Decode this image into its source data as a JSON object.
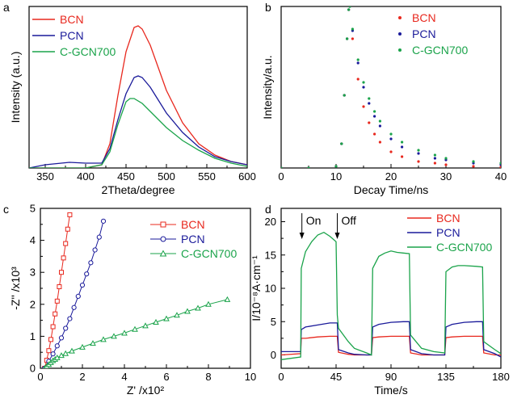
{
  "colors": {
    "BCN": "#e8281e",
    "PCN": "#1a1a9a",
    "C-GCN700": "#1aa34a",
    "axis": "#000000"
  },
  "chart_data": [
    {
      "panel": "a",
      "type": "line",
      "xlabel": "2Theta/degree",
      "ylabel": "Intensity (a.u.)",
      "xlim": [
        330,
        600
      ],
      "ylim": [
        0,
        1.0
      ],
      "xticks": [
        350,
        400,
        450,
        500,
        550,
        600
      ],
      "yticks": [],
      "legend": "top-left",
      "series": [
        {
          "name": "BCN",
          "color": "#e8281e",
          "x": [
            330,
            350,
            380,
            400,
            420,
            430,
            440,
            450,
            460,
            465,
            470,
            480,
            490,
            500,
            520,
            540,
            560,
            580,
            600
          ],
          "y": [
            0.0,
            0.0,
            0.0,
            0.0,
            0.02,
            0.15,
            0.45,
            0.72,
            0.87,
            0.88,
            0.86,
            0.76,
            0.62,
            0.48,
            0.28,
            0.15,
            0.08,
            0.04,
            0.02
          ]
        },
        {
          "name": "PCN",
          "color": "#1a1a9a",
          "x": [
            330,
            350,
            380,
            400,
            420,
            430,
            440,
            450,
            460,
            465,
            470,
            480,
            490,
            500,
            520,
            540,
            560,
            580,
            600
          ],
          "y": [
            0.0,
            0.02,
            0.035,
            0.03,
            0.03,
            0.12,
            0.3,
            0.46,
            0.56,
            0.57,
            0.56,
            0.5,
            0.42,
            0.34,
            0.22,
            0.13,
            0.07,
            0.04,
            0.02
          ]
        },
        {
          "name": "C-GCN700",
          "color": "#1aa34a",
          "x": [
            330,
            350,
            380,
            400,
            420,
            430,
            440,
            450,
            455,
            460,
            470,
            480,
            490,
            500,
            520,
            540,
            560,
            580,
            600
          ],
          "y": [
            0.0,
            0.0,
            0.0,
            0.0,
            0.02,
            0.1,
            0.27,
            0.41,
            0.43,
            0.43,
            0.4,
            0.35,
            0.3,
            0.25,
            0.17,
            0.11,
            0.06,
            0.03,
            0.01
          ]
        }
      ]
    },
    {
      "panel": "b",
      "type": "scatter",
      "xlabel": "Decay Time/ns",
      "ylabel": "Intensity/a.u.",
      "xlim": [
        0,
        40
      ],
      "ylim": [
        0,
        1.0
      ],
      "xticks": [
        0,
        10,
        20,
        30,
        40
      ],
      "yticks": [],
      "legend": "top-right",
      "series": [
        {
          "name": "BCN",
          "color": "#e8281e",
          "x": [
            0,
            5,
            10,
            11,
            11.5,
            12,
            12.3,
            12.5,
            13,
            14,
            15,
            16,
            17,
            18,
            20,
            22,
            25,
            28,
            30,
            35,
            40
          ],
          "y": [
            0.0,
            0.0,
            0.01,
            0.15,
            0.45,
            0.8,
            0.98,
            1.0,
            0.8,
            0.55,
            0.38,
            0.28,
            0.21,
            0.16,
            0.1,
            0.07,
            0.04,
            0.03,
            0.02,
            0.01,
            0.005
          ]
        },
        {
          "name": "PCN",
          "color": "#1a1a9a",
          "x": [
            0,
            5,
            10,
            11,
            11.5,
            12,
            12.3,
            12.5,
            13,
            14,
            15,
            16,
            17,
            18,
            20,
            22,
            25,
            28,
            30,
            35,
            40
          ],
          "y": [
            0.0,
            0.0,
            0.01,
            0.15,
            0.45,
            0.8,
            0.98,
            1.0,
            0.85,
            0.65,
            0.5,
            0.4,
            0.32,
            0.26,
            0.18,
            0.13,
            0.09,
            0.06,
            0.05,
            0.03,
            0.02
          ]
        },
        {
          "name": "C-GCN700",
          "color": "#1aa34a",
          "x": [
            0,
            5,
            10,
            11,
            11.5,
            12,
            12.3,
            12.5,
            13,
            14,
            15,
            16,
            17,
            18,
            20,
            22,
            25,
            28,
            30,
            35,
            40
          ],
          "y": [
            0.0,
            0.0,
            0.01,
            0.15,
            0.45,
            0.8,
            0.98,
            1.0,
            0.86,
            0.67,
            0.53,
            0.43,
            0.35,
            0.29,
            0.21,
            0.16,
            0.11,
            0.08,
            0.06,
            0.04,
            0.03
          ]
        }
      ]
    },
    {
      "panel": "c",
      "type": "scatter",
      "xlabel": "Z' /x10²",
      "ylabel": "-Z'' /x10³",
      "xlim": [
        0,
        10
      ],
      "ylim": [
        0,
        5
      ],
      "xticks": [
        0,
        2,
        4,
        6,
        8,
        10
      ],
      "yticks": [
        0,
        1,
        2,
        3,
        4,
        5
      ],
      "legend": "top-right",
      "series": [
        {
          "name": "BCN",
          "color": "#e8281e",
          "marker": "square",
          "x": [
            0.2,
            0.3,
            0.4,
            0.5,
            0.6,
            0.7,
            0.8,
            0.9,
            1.0,
            1.1,
            1.2,
            1.3,
            1.4
          ],
          "y": [
            0.0,
            0.25,
            0.55,
            0.9,
            1.3,
            1.7,
            2.1,
            2.55,
            3.0,
            3.45,
            3.9,
            4.35,
            4.8
          ]
        },
        {
          "name": "PCN",
          "color": "#1a1a9a",
          "marker": "circle",
          "x": [
            0.2,
            0.4,
            0.6,
            0.8,
            1.0,
            1.2,
            1.4,
            1.6,
            1.8,
            2.0,
            2.2,
            2.4,
            2.6,
            2.8,
            3.0
          ],
          "y": [
            0.0,
            0.22,
            0.45,
            0.7,
            0.95,
            1.25,
            1.55,
            1.9,
            2.25,
            2.6,
            2.95,
            3.3,
            3.7,
            4.1,
            4.6
          ]
        },
        {
          "name": "C-GCN700",
          "color": "#1aa34a",
          "marker": "triangle",
          "x": [
            0.2,
            0.3,
            0.4,
            0.5,
            0.6,
            0.7,
            0.8,
            1.0,
            1.2,
            1.5,
            2.0,
            2.5,
            3.0,
            3.5,
            4.0,
            4.5,
            5.0,
            5.5,
            6.0,
            6.5,
            7.0,
            7.5,
            8.0,
            8.9
          ],
          "y": [
            0.0,
            0.06,
            0.12,
            0.18,
            0.24,
            0.28,
            0.33,
            0.4,
            0.46,
            0.54,
            0.66,
            0.78,
            0.9,
            1.0,
            1.1,
            1.22,
            1.33,
            1.44,
            1.55,
            1.66,
            1.78,
            1.88,
            2.0,
            2.15
          ]
        }
      ]
    },
    {
      "panel": "d",
      "type": "line",
      "xlabel": "Time/s",
      "ylabel": "I/10⁻⁸A·cm⁻¹",
      "xlim": [
        0,
        180
      ],
      "ylim": [
        -2,
        22
      ],
      "xticks": [
        0,
        45,
        90,
        135,
        180
      ],
      "yticks": [
        0,
        5,
        10,
        15,
        20
      ],
      "legend": "top-right",
      "annotations": [
        {
          "text": "On",
          "x": 17
        },
        {
          "text": "Off",
          "x": 46
        }
      ],
      "series": [
        {
          "name": "BCN",
          "color": "#e8281e",
          "x": [
            0,
            16,
            16.5,
            20,
            30,
            40,
            46,
            47,
            55,
            60,
            70,
            74,
            75,
            80,
            90,
            100,
            105,
            106,
            115,
            125,
            134,
            135,
            140,
            150,
            160,
            165,
            166,
            175,
            180
          ],
          "y": [
            0,
            0.2,
            2.5,
            2.5,
            2.7,
            2.8,
            2.8,
            0.4,
            0.1,
            0,
            0,
            0,
            2.6,
            2.7,
            2.8,
            2.8,
            2.8,
            0.3,
            0,
            0,
            0,
            2.6,
            2.7,
            2.8,
            2.8,
            2.8,
            0.3,
            0,
            0
          ]
        },
        {
          "name": "PCN",
          "color": "#1a1a9a",
          "x": [
            0,
            16,
            16.5,
            20,
            30,
            40,
            46,
            47,
            55,
            60,
            70,
            74,
            75,
            80,
            90,
            100,
            105,
            106,
            115,
            125,
            134,
            135,
            140,
            150,
            160,
            165,
            166,
            175,
            180
          ],
          "y": [
            0.5,
            0.5,
            3.8,
            4.2,
            4.5,
            4.8,
            4.8,
            0.8,
            0.3,
            0.1,
            0,
            0,
            4.2,
            4.6,
            4.9,
            5.0,
            5.0,
            0.8,
            0.2,
            0,
            0,
            4.2,
            4.6,
            4.9,
            5.0,
            5.0,
            0.8,
            0.2,
            -0.3
          ]
        },
        {
          "name": "C-GCN700",
          "color": "#1aa34a",
          "x": [
            0,
            16,
            16.5,
            20,
            25,
            30,
            35,
            40,
            45,
            46,
            47,
            55,
            60,
            70,
            74,
            75,
            80,
            85,
            90,
            95,
            100,
            105,
            106,
            115,
            125,
            134,
            135,
            140,
            145,
            150,
            160,
            165,
            166,
            175,
            180
          ],
          "y": [
            -0.7,
            -0.3,
            13,
            15.5,
            17,
            18,
            18.4,
            17.8,
            17,
            6,
            4,
            2,
            1,
            0.3,
            0,
            13,
            14.8,
            15.3,
            15.6,
            15.4,
            15.3,
            15.2,
            3,
            1,
            0.5,
            0.3,
            12.5,
            13.2,
            13.4,
            13.4,
            13.3,
            13.2,
            2,
            0.8,
            0.2
          ]
        }
      ]
    }
  ]
}
